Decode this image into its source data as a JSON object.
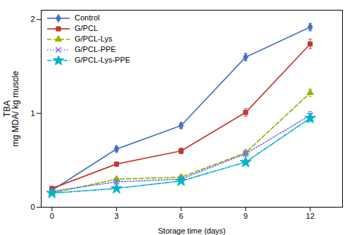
{
  "chart_data": {
    "type": "line",
    "xlabel": "Storage time (days)",
    "ylabel": "TBA\nmg MDA/ kg muscle",
    "x": [
      0,
      3,
      6,
      9,
      12
    ],
    "series": [
      {
        "name": "Control",
        "color": "#4472C4",
        "values": [
          0.18,
          0.62,
          0.87,
          1.6,
          1.92
        ],
        "yerr": [
          0.01,
          0.03,
          0.03,
          0.04,
          0.04
        ],
        "marker": "diamond",
        "line_style": "solid"
      },
      {
        "name": "G/PCL",
        "color": "#C0392B",
        "values": [
          0.2,
          0.46,
          0.6,
          1.01,
          1.74
        ],
        "yerr": [
          0.01,
          0.02,
          0.03,
          0.04,
          0.05
        ],
        "marker": "square",
        "line_style": "solid"
      },
      {
        "name": "G/PCL-Lys",
        "color": "#8DB600",
        "values": [
          0.15,
          0.3,
          0.32,
          0.58,
          1.22
        ],
        "yerr": [
          0.01,
          0.015,
          0.02,
          0.03,
          0.04
        ],
        "marker": "triangle",
        "line_style": "dashed"
      },
      {
        "name": "G/PCL-PPE",
        "color": "#7B68EE",
        "values": [
          0.17,
          0.27,
          0.3,
          0.57,
          0.98
        ],
        "yerr": [
          0.01,
          0.015,
          0.02,
          0.025,
          0.04
        ],
        "marker": "times",
        "line_style": "dotted"
      },
      {
        "name": "G/PCL-Lys-PPE",
        "color": "#00B4C8",
        "values": [
          0.15,
          0.2,
          0.28,
          0.48,
          0.95
        ],
        "yerr": [
          0.01,
          0.015,
          0.02,
          0.025,
          0.04
        ],
        "marker": "star",
        "line_style": "dashdot"
      }
    ],
    "xlim": [
      -0.5,
      13.5
    ],
    "ylim": [
      0,
      2.1
    ],
    "xticks": [
      0,
      3,
      6,
      9,
      12
    ],
    "yticks": [
      0,
      1,
      2
    ],
    "grid": false,
    "legend": "upper left"
  }
}
